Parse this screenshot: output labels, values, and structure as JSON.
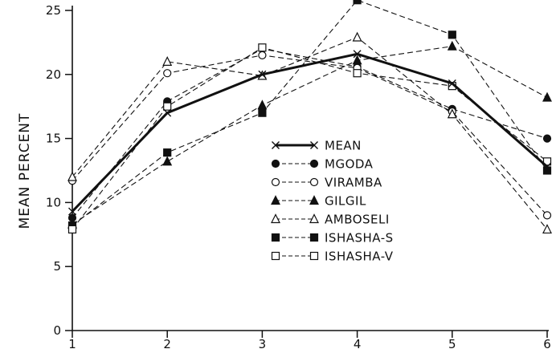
{
  "chart_data": {
    "type": "line",
    "title": "",
    "xlabel": "",
    "ylabel": "MEAN PERCENT",
    "x": [
      1,
      2,
      3,
      4,
      5,
      6
    ],
    "xlim": [
      1,
      6
    ],
    "ylim": [
      0,
      25
    ],
    "x_ticks": [
      "1",
      "2",
      "3",
      "4",
      "5",
      "6"
    ],
    "y_ticks": [
      "0",
      "5",
      "10",
      "15",
      "20",
      "25"
    ],
    "grid": false,
    "legend_position": "center-right",
    "series": [
      {
        "name": "MEAN",
        "marker": "cross",
        "line": "solid-bold",
        "values": [
          9.3,
          17.0,
          20.0,
          21.6,
          19.3,
          12.8
        ]
      },
      {
        "name": "MGODA",
        "marker": "filled-circle",
        "line": "dashed",
        "values": [
          8.8,
          17.9,
          22.0,
          20.6,
          17.3,
          15.0
        ]
      },
      {
        "name": "VIRAMBA",
        "marker": "open-circle",
        "line": "dashed",
        "values": [
          11.7,
          20.1,
          21.5,
          20.5,
          17.1,
          9.0
        ]
      },
      {
        "name": "GILGIL",
        "marker": "filled-triangle",
        "line": "dashed",
        "values": [
          8.3,
          13.2,
          17.6,
          21.1,
          22.2,
          18.2
        ]
      },
      {
        "name": "AMBOSELI",
        "marker": "open-triangle",
        "line": "dashed",
        "values": [
          12.0,
          21.0,
          19.9,
          22.9,
          16.9,
          7.9
        ]
      },
      {
        "name": "ISHASHA-S",
        "marker": "filled-square",
        "line": "dashed",
        "values": [
          8.2,
          13.9,
          17.0,
          25.8,
          23.1,
          12.5
        ]
      },
      {
        "name": "ISHASHA-V",
        "marker": "open-square",
        "line": "dashed",
        "values": [
          7.9,
          17.5,
          22.1,
          20.1,
          19.1,
          13.2
        ]
      }
    ]
  }
}
